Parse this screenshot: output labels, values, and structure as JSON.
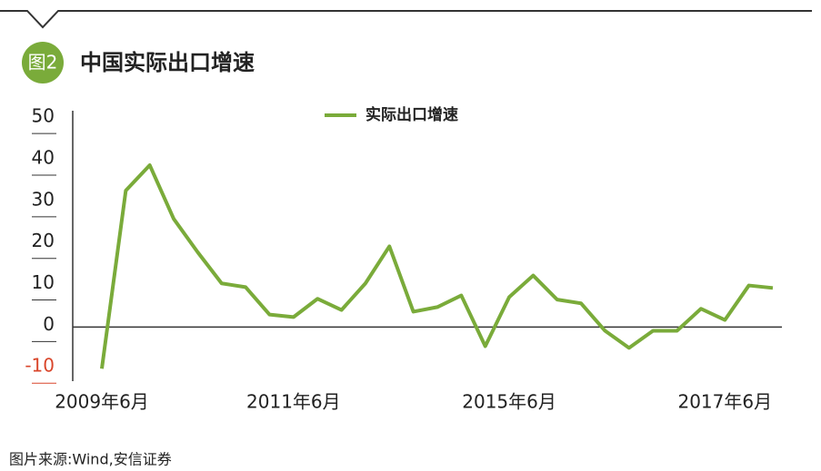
{
  "badge": "图2",
  "source": "图片来源:Wind,安信证券",
  "chart_data": {
    "type": "line",
    "title": "中国实际出口增速",
    "categories": [
      "2009年6月",
      null,
      null,
      null,
      null,
      null,
      null,
      null,
      "2011年6月",
      null,
      null,
      null,
      null,
      null,
      null,
      null,
      null,
      "2015年6月",
      null,
      null,
      null,
      null,
      null,
      null,
      null,
      null,
      "2017年6月",
      null,
      null
    ],
    "series": [
      {
        "name": "实际出口增速",
        "color": "#7aab3a",
        "values": [
          -10,
          32.8,
          38.9,
          26,
          18,
          10.5,
          9.6,
          3,
          2.4,
          6.8,
          4.1,
          10.5,
          19.4,
          3.7,
          4.8,
          7.6,
          -4.6,
          7.2,
          12.4,
          6.6,
          5.7,
          -0.9,
          -5,
          -0.9,
          -0.9,
          4.4,
          1.7,
          10,
          9.4
        ]
      }
    ],
    "ylim": [
      -13,
      52
    ],
    "yticks": [
      -10,
      0,
      10,
      20,
      30,
      40,
      50
    ],
    "negative_tick_color": "#d9462b"
  }
}
